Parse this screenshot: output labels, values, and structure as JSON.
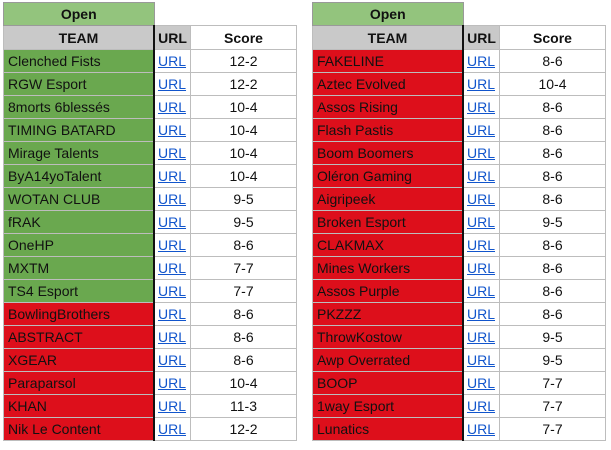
{
  "colors": {
    "open_header": "#93c47d",
    "green": "#6aa84f",
    "red": "#dd0f1b",
    "header_gray": "#c9c9c9",
    "link": "#1155cc"
  },
  "headers": {
    "team": "TEAM",
    "url": "URL",
    "score": "Score"
  },
  "left": {
    "title": "Open",
    "rows": [
      {
        "team": "Clenched Fists",
        "url": "URL",
        "score": "12-2",
        "status": "green"
      },
      {
        "team": "RGW Esport",
        "url": "URL",
        "score": "12-2",
        "status": "green"
      },
      {
        "team": "8morts 6blessés",
        "url": "URL",
        "score": "10-4",
        "status": "green"
      },
      {
        "team": "TIMING BATARD",
        "url": "URL",
        "score": "10-4",
        "status": "green"
      },
      {
        "team": "Mirage Talents",
        "url": "URL",
        "score": "10-4",
        "status": "green"
      },
      {
        "team": "ByA14yoTalent",
        "url": "URL",
        "score": "10-4",
        "status": "green"
      },
      {
        "team": "WOTAN CLUB",
        "url": "URL",
        "score": "9-5",
        "status": "green"
      },
      {
        "team": "fRAK",
        "url": "URL",
        "score": "9-5",
        "status": "green"
      },
      {
        "team": "OneHP",
        "url": "URL",
        "score": "8-6",
        "status": "green"
      },
      {
        "team": "MXTM",
        "url": "URL",
        "score": "7-7",
        "status": "green"
      },
      {
        "team": "TS4 Esport",
        "url": "URL",
        "score": "7-7",
        "status": "green"
      },
      {
        "team": "BowlingBrothers",
        "url": "URL",
        "score": "8-6",
        "status": "red"
      },
      {
        "team": "ABSTRACT",
        "url": "URL",
        "score": "8-6",
        "status": "red"
      },
      {
        "team": "XGEAR",
        "url": "URL",
        "score": "8-6",
        "status": "red"
      },
      {
        "team": "Paraparsol",
        "url": "URL",
        "score": "10-4",
        "status": "red"
      },
      {
        "team": "KHAN",
        "url": "URL",
        "score": "11-3",
        "status": "red"
      },
      {
        "team": "Nik Le Content",
        "url": "URL",
        "score": "12-2",
        "status": "red"
      }
    ]
  },
  "right": {
    "title": "Open",
    "rows": [
      {
        "team": "FAKELINE",
        "url": "URL",
        "score": "8-6",
        "status": "red"
      },
      {
        "team": "Aztec Evolved",
        "url": "URL",
        "score": "10-4",
        "status": "red"
      },
      {
        "team": "Assos Rising",
        "url": "URL",
        "score": "8-6",
        "status": "red"
      },
      {
        "team": "Flash Pastis",
        "url": "URL",
        "score": "8-6",
        "status": "red"
      },
      {
        "team": "Boom Boomers",
        "url": "URL",
        "score": "8-6",
        "status": "red"
      },
      {
        "team": "Oléron Gaming",
        "url": "URL",
        "score": "8-6",
        "status": "red"
      },
      {
        "team": "Aigripeek",
        "url": "URL",
        "score": "8-6",
        "status": "red"
      },
      {
        "team": "Broken Esport",
        "url": "URL",
        "score": "9-5",
        "status": "red"
      },
      {
        "team": "CLAKMAX",
        "url": "URL",
        "score": "8-6",
        "status": "red"
      },
      {
        "team": "Mines Workers",
        "url": "URL",
        "score": "8-6",
        "status": "red"
      },
      {
        "team": "Assos Purple",
        "url": "URL",
        "score": "8-6",
        "status": "red"
      },
      {
        "team": "PKZZZ",
        "url": "URL",
        "score": "8-6",
        "status": "red"
      },
      {
        "team": "ThrowKostow",
        "url": "URL",
        "score": "9-5",
        "status": "red"
      },
      {
        "team": "Awp Overrated",
        "url": "URL",
        "score": "9-5",
        "status": "red"
      },
      {
        "team": "BOOP",
        "url": "URL",
        "score": "7-7",
        "status": "red"
      },
      {
        "team": "1way Esport",
        "url": "URL",
        "score": "7-7",
        "status": "red"
      },
      {
        "team": "Lunatics",
        "url": "URL",
        "score": "7-7",
        "status": "red"
      }
    ]
  }
}
